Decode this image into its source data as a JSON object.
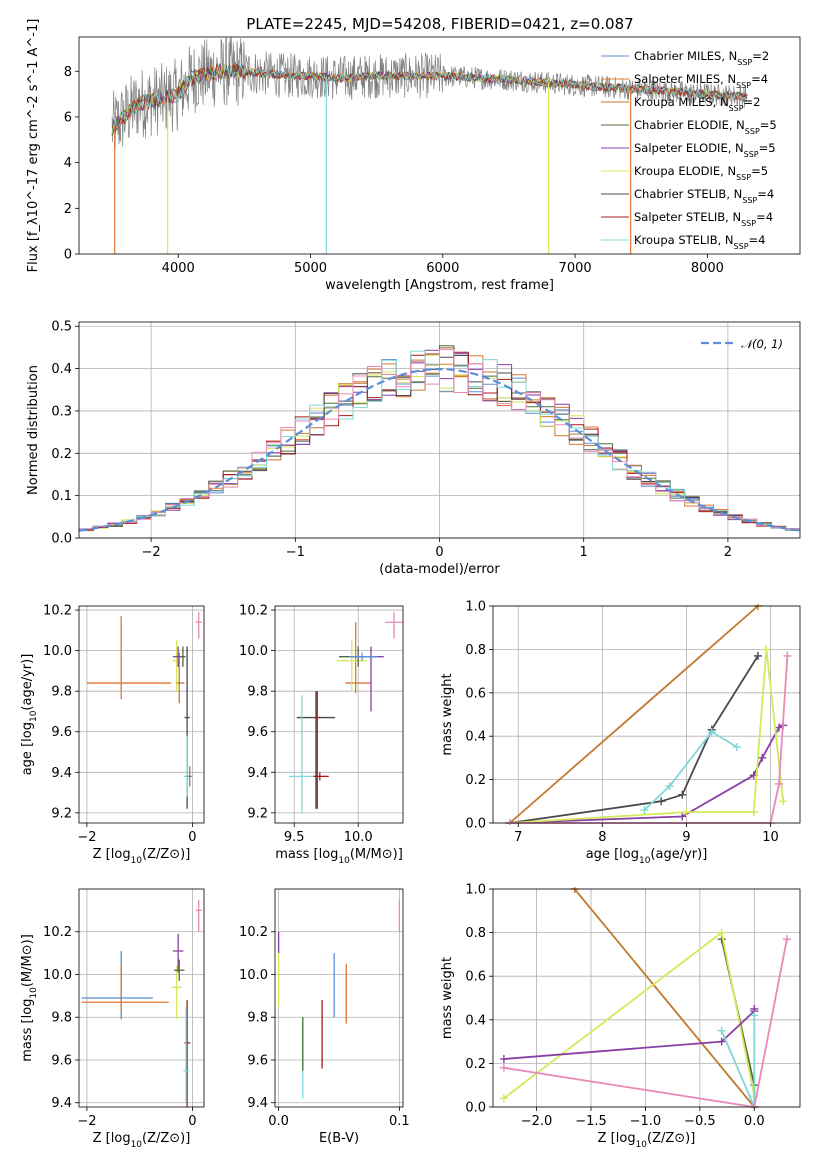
{
  "title": "PLATE=2245, MJD=54208, FIBERID=0421, z=0.087",
  "colors": {
    "chabrier_miles": "#5b8fd9",
    "salpeter_miles": "#e0762f",
    "kroupa_miles": "#c2792e",
    "chabrier_elodie": "#4f6b3a",
    "salpeter_elodie": "#8a3fa6",
    "kroupa_elodie": "#d4e85a",
    "chabrier_stelib": "#4a4a4a",
    "salpeter_stelib": "#a81c1c",
    "kroupa_stelib": "#7fd8d8",
    "data": "#808080",
    "pink": "#e88ab8"
  },
  "chart_data": [
    {
      "type": "line",
      "xlabel": "wavelength [Angstrom, rest frame]",
      "ylabel": "Flux [f_λ10^-17 erg cm^-2 s^-1 A^-1]",
      "xlim": [
        3250,
        8700
      ],
      "ylim": [
        0,
        9.5
      ],
      "xticks": [
        4000,
        5000,
        6000,
        7000,
        8000
      ],
      "yticks": [
        0,
        2,
        4,
        6,
        8
      ],
      "grid": false,
      "legend_position": "right",
      "legend": [
        {
          "label": "Chabrier MILES, N",
          "sub": "SSP",
          "suffix": "=2",
          "color": "#5b8fd9"
        },
        {
          "label": "Salpeter MILES, N",
          "sub": "SSP",
          "suffix": "=4",
          "color": "#e0762f"
        },
        {
          "label": "Kroupa MILES, N",
          "sub": "SSP",
          "suffix": "=2",
          "color": "#c2792e"
        },
        {
          "label": "Chabrier ELODIE, N",
          "sub": "SSP",
          "suffix": "=5",
          "color": "#4f6b3a"
        },
        {
          "label": "Salpeter ELODIE, N",
          "sub": "SSP",
          "suffix": "=5",
          "color": "#8a3fa6"
        },
        {
          "label": "Kroupa ELODIE, N",
          "sub": "SSP",
          "suffix": "=5",
          "color": "#d4e85a"
        },
        {
          "label": "Chabrier STELIB, N",
          "sub": "SSP",
          "suffix": "=4",
          "color": "#4a4a4a"
        },
        {
          "label": "Salpeter STELIB, N",
          "sub": "SSP",
          "suffix": "=4",
          "color": "#a81c1c"
        },
        {
          "label": "Kroupa STELIB, N",
          "sub": "SSP",
          "suffix": "=4",
          "color": "#7fd8d8"
        }
      ],
      "continuum": {
        "x": [
          3500,
          3700,
          3900,
          4000,
          4100,
          4300,
          4500,
          4800,
          5000,
          5200,
          5500,
          5800,
          6000,
          6300,
          6600,
          7000,
          7500,
          8000,
          8300
        ],
        "y": [
          5.5,
          6.6,
          6.8,
          7.0,
          7.7,
          8.0,
          8.0,
          7.8,
          7.8,
          7.7,
          7.8,
          7.8,
          7.8,
          7.7,
          7.6,
          7.4,
          7.2,
          7.0,
          6.9
        ]
      },
      "dips": [
        {
          "x": 3520,
          "y": 0,
          "color": "#e0762f"
        },
        {
          "x": 3920,
          "y": 0,
          "color": "#d4e85a"
        },
        {
          "x": 5120,
          "y": 0,
          "color": "#7fd8d8"
        },
        {
          "x": 6800,
          "y": 0,
          "color": "#d4e85a"
        },
        {
          "x": 7420,
          "y": 0,
          "color": "#e0762f"
        }
      ]
    },
    {
      "type": "histogram",
      "xlabel": "(data-model)/error",
      "ylabel": "Normed distribution",
      "xlim": [
        -2.5,
        2.5
      ],
      "ylim": [
        0,
        0.51
      ],
      "xticks": [
        -2,
        -1,
        0,
        1,
        2
      ],
      "xticklabels": [
        "−2",
        "−1",
        "0",
        "1",
        "2"
      ],
      "yticks": [
        0,
        0.1,
        0.2,
        0.3,
        0.4,
        0.5
      ],
      "yticklabels": [
        "0.0",
        "0.1",
        "0.2",
        "0.3",
        "0.4",
        "0.5"
      ],
      "grid": true,
      "legend_position": "top-right",
      "legend": [
        {
          "label": "𝒩(0, 1)",
          "color": "#5b8fd9",
          "dashed": true
        }
      ],
      "bin_width": 0.1,
      "bin_start": -2.5
    },
    {
      "type": "scatter",
      "xlabel": "Z [log10(Z/Z⊙)]",
      "ylabel": "age  [log10(age/yr)]",
      "xlim": [
        -2.15,
        0.22
      ],
      "ylim": [
        9.15,
        10.22
      ],
      "xticks": [
        -2,
        0
      ],
      "xticklabels": [
        "−2",
        "0"
      ],
      "yticks": [
        9.2,
        9.4,
        9.6,
        9.8,
        10.0,
        10.2
      ],
      "yticklabels": [
        "9.2",
        "9.4",
        "9.6",
        "9.8",
        "10.0",
        "10.2"
      ],
      "grid": true,
      "points": [
        {
          "x": -1.35,
          "xerr": [
            0.65,
            0.95
          ],
          "y": 9.84,
          "yerr": [
            0.08,
            0.33
          ],
          "color": "#e0762f"
        },
        {
          "x": -0.3,
          "xerr": [
            0.08,
            0.05
          ],
          "y": 9.95,
          "yerr": [
            0.15,
            0.1
          ],
          "color": "#d4e85a"
        },
        {
          "x": -0.25,
          "xerr": [
            0.05,
            0.1
          ],
          "y": 9.84,
          "yerr": [
            0.1,
            0.15
          ],
          "color": "#c2792e"
        },
        {
          "x": -0.27,
          "xerr": [
            0.1,
            0.1
          ],
          "y": 9.97,
          "yerr": [
            0.05,
            0.05
          ],
          "color": "#8a3fa6"
        },
        {
          "x": -0.18,
          "xerr": [
            0.05,
            0.05
          ],
          "y": 9.97,
          "yerr": [
            0.05,
            0.05
          ],
          "color": "#4f6b3a"
        },
        {
          "x": -0.1,
          "xerr": [
            0.05,
            0.05
          ],
          "y": 9.67,
          "yerr": [
            0.45,
            0.35
          ],
          "color": "#4a4a4a"
        },
        {
          "x": -0.1,
          "xerr": [
            0.06,
            0.05
          ],
          "y": 9.38,
          "yerr": [
            0.1,
            0.2
          ],
          "color": "#7fd8d8"
        },
        {
          "x": -0.05,
          "xerr": [
            0.04,
            0.04
          ],
          "y": 9.38,
          "yerr": [
            0.05,
            0.05
          ],
          "color": "#808080"
        },
        {
          "x": 0.12,
          "xerr": [
            0.06,
            0.06
          ],
          "y": 10.14,
          "yerr": [
            0.08,
            0.05
          ],
          "color": "#e88ab8"
        }
      ]
    },
    {
      "type": "scatter",
      "xlabel": "mass [log10(M/M⊙)]",
      "ylabel": "",
      "xlim": [
        9.35,
        10.35
      ],
      "ylim": [
        9.15,
        10.22
      ],
      "xticks": [
        9.5,
        10.0
      ],
      "xticklabels": [
        "9.5",
        "10.0"
      ],
      "yticks": [
        9.2,
        9.4,
        9.6,
        9.8,
        10.0,
        10.2
      ],
      "yticklabels": [
        "9.2",
        "9.4",
        "9.6",
        "9.8",
        "10.0",
        "10.2"
      ],
      "grid": true,
      "points": [
        {
          "x": 9.67,
          "xerr": [
            0.15,
            0.15
          ],
          "y": 9.67,
          "yerr": [
            0.45,
            0.13
          ],
          "color": "#4a4a4a"
        },
        {
          "x": 9.68,
          "xerr": [
            0.02,
            0.02
          ],
          "y": 9.67,
          "yerr": [
            0.45,
            0.13
          ],
          "color": "#a81c1c"
        },
        {
          "x": 9.56,
          "xerr": [
            0.1,
            0.1
          ],
          "y": 9.38,
          "yerr": [
            0.18,
            0.4
          ],
          "color": "#7fd8d8"
        },
        {
          "x": 9.7,
          "xerr": [
            0.05,
            0.07
          ],
          "y": 9.38,
          "yerr": [
            0.02,
            0.02
          ],
          "color": "#a81c1c"
        },
        {
          "x": 9.98,
          "xerr": [
            0.08,
            0.12
          ],
          "y": 9.84,
          "yerr": [
            0.05,
            0.3
          ],
          "color": "#e0762f"
        },
        {
          "x": 9.95,
          "xerr": [
            0.12,
            0.12
          ],
          "y": 9.95,
          "yerr": [
            0.15,
            0.1
          ],
          "color": "#d4e85a"
        },
        {
          "x": 10.0,
          "xerr": [
            0.15,
            0.15
          ],
          "y": 9.97,
          "yerr": [
            0.05,
            0.05
          ],
          "color": "#4f6b3a"
        },
        {
          "x": 10.1,
          "xerr": [
            0.15,
            0.1
          ],
          "y": 9.97,
          "yerr": [
            0.27,
            0.05
          ],
          "color": "#8a3fa6"
        },
        {
          "x": 10.03,
          "xerr": [
            0.1,
            0.12
          ],
          "y": 9.97,
          "yerr": [
            0.02,
            0.02
          ],
          "color": "#5b8fd9"
        },
        {
          "x": 10.28,
          "xerr": [
            0.07,
            0.07
          ],
          "y": 10.14,
          "yerr": [
            0.08,
            0.05
          ],
          "color": "#e88ab8"
        }
      ]
    },
    {
      "type": "line",
      "xlabel": "age  [log10(age/yr)]",
      "ylabel": "mass weight",
      "xlim": [
        6.7,
        10.35
      ],
      "ylim": [
        0,
        1.0
      ],
      "xticks": [
        7,
        8,
        9,
        10
      ],
      "xticklabels": [
        "7",
        "8",
        "9",
        "10"
      ],
      "yticks": [
        0,
        0.2,
        0.4,
        0.6,
        0.8,
        1.0
      ],
      "yticklabels": [
        "0.0",
        "0.2",
        "0.4",
        "0.6",
        "0.8",
        "1.0"
      ],
      "grid": true,
      "series": [
        {
          "color": "#c2792e",
          "x": [
            6.9,
            9.85
          ],
          "y": [
            0.0,
            1.0
          ]
        },
        {
          "color": "#4a4a4a",
          "x": [
            6.9,
            8.7,
            8.95,
            9.3,
            9.85
          ],
          "y": [
            0.0,
            0.1,
            0.13,
            0.43,
            0.77
          ]
        },
        {
          "color": "#7fd8d8",
          "x": [
            8.5,
            8.8,
            9.3,
            9.6
          ],
          "y": [
            0.06,
            0.17,
            0.42,
            0.35
          ]
        },
        {
          "color": "#8a3fa6",
          "x": [
            6.9,
            8.95,
            9.8,
            9.9,
            10.1,
            10.15
          ],
          "y": [
            0.0,
            0.03,
            0.22,
            0.3,
            0.44,
            0.45
          ]
        },
        {
          "color": "#d4e85a",
          "x": [
            6.9,
            9.0,
            9.8,
            9.95,
            10.15
          ],
          "y": [
            0.0,
            0.05,
            0.05,
            0.8,
            0.1
          ]
        },
        {
          "color": "#e88ab8",
          "x": [
            6.9,
            10.0,
            10.1,
            10.2
          ],
          "y": [
            0.0,
            0.0,
            0.18,
            0.77
          ]
        }
      ]
    },
    {
      "type": "scatter",
      "xlabel": "Z [log10(Z/Z⊙)]",
      "ylabel": "mass [log10(M/M⊙)]",
      "xlim": [
        -2.15,
        0.22
      ],
      "ylim": [
        9.38,
        10.4
      ],
      "xticks": [
        -2,
        0
      ],
      "xticklabels": [
        "−2",
        "0"
      ],
      "yticks": [
        9.4,
        9.6,
        9.8,
        10.0,
        10.2
      ],
      "yticklabels": [
        "9.4",
        "9.6",
        "9.8",
        "10.0",
        "10.2"
      ],
      "grid": true,
      "points": [
        {
          "x": -1.35,
          "xerr": [
            0.75,
            0.6
          ],
          "y": 9.89,
          "yerr": [
            0.1,
            0.22
          ],
          "color": "#5b8fd9"
        },
        {
          "x": -1.35,
          "xerr": [
            0.75,
            0.9
          ],
          "y": 9.87,
          "yerr": [
            0.05,
            0.17
          ],
          "color": "#e0762f"
        },
        {
          "x": -0.3,
          "xerr": [
            0.1,
            0.1
          ],
          "y": 9.94,
          "yerr": [
            0.15,
            0.1
          ],
          "color": "#d4e85a"
        },
        {
          "x": -0.27,
          "xerr": [
            0.1,
            0.1
          ],
          "y": 10.11,
          "yerr": [
            0.1,
            0.08
          ],
          "color": "#8a3fa6"
        },
        {
          "x": -0.25,
          "xerr": [
            0.1,
            0.1
          ],
          "y": 10.02,
          "yerr": [
            0.05,
            0.05
          ],
          "color": "#4f6b3a"
        },
        {
          "x": -0.1,
          "xerr": [
            0.05,
            0.06
          ],
          "y": 9.68,
          "yerr": [
            0.3,
            0.2
          ],
          "color": "#a81c1c"
        },
        {
          "x": -0.12,
          "xerr": [
            0.05,
            0.06
          ],
          "y": 9.55,
          "yerr": [
            0.15,
            0.3
          ],
          "color": "#7fd8d8"
        },
        {
          "x": 0.12,
          "xerr": [
            0.06,
            0.06
          ],
          "y": 10.3,
          "yerr": [
            0.1,
            0.05
          ],
          "color": "#e88ab8"
        }
      ]
    },
    {
      "type": "scatter",
      "xlabel": "E(B-V)",
      "ylabel": "",
      "xlim": [
        -0.003,
        0.103
      ],
      "ylim": [
        9.38,
        10.4
      ],
      "xticks": [
        0.0,
        0.1
      ],
      "xticklabels": [
        "0.0",
        "0.1"
      ],
      "yticks": [
        9.4,
        9.6,
        9.8,
        10.0,
        10.2
      ],
      "yticklabels": [
        "9.4",
        "9.6",
        "9.8",
        "10.0",
        "10.2"
      ],
      "grid": true,
      "points": [
        {
          "x": 0.0,
          "y": 10.05,
          "yerr": [
            0.2,
            0.15
          ],
          "color": "#d4e85a"
        },
        {
          "x": 0.0,
          "y": 10.15,
          "yerr": [
            0.05,
            0.05
          ],
          "color": "#8a3fa6"
        },
        {
          "x": 0.02,
          "y": 9.6,
          "yerr": [
            0.18,
            0.2
          ],
          "color": "#7fd8d8"
        },
        {
          "x": 0.02,
          "y": 9.65,
          "yerr": [
            0.1,
            0.15
          ],
          "color": "#4f6b3a"
        },
        {
          "x": 0.036,
          "y": 9.72,
          "yerr": [
            0.16,
            0.16
          ],
          "color": "#a81c1c"
        },
        {
          "x": 0.046,
          "y": 9.95,
          "yerr": [
            0.15,
            0.15
          ],
          "color": "#5b8fd9"
        },
        {
          "x": 0.056,
          "y": 9.91,
          "yerr": [
            0.14,
            0.14
          ],
          "color": "#e0762f"
        },
        {
          "x": 0.1,
          "y": 10.3,
          "yerr": [
            0.1,
            0.05
          ],
          "color": "#e88ab8"
        }
      ]
    },
    {
      "type": "line",
      "xlabel": "Z [log10(Z/Z⊙)]",
      "ylabel": "mass weight",
      "xlim": [
        -2.4,
        0.42
      ],
      "ylim": [
        0,
        1.0
      ],
      "xticks": [
        -2.0,
        -1.5,
        -1.0,
        -0.5,
        0.0
      ],
      "xticklabels": [
        "−2.0",
        "−1.5",
        "−1.0",
        "−0.5",
        "0.0"
      ],
      "yticks": [
        0,
        0.2,
        0.4,
        0.6,
        0.8,
        1.0
      ],
      "yticklabels": [
        "0.0",
        "0.2",
        "0.4",
        "0.6",
        "0.8",
        "1.0"
      ],
      "grid": true,
      "series": [
        {
          "color": "#c2792e",
          "x": [
            -1.65,
            0.0
          ],
          "y": [
            1.0,
            0.0
          ]
        },
        {
          "color": "#4f6b3a",
          "x": [
            -0.3,
            0.0,
            0.0
          ],
          "y": [
            0.77,
            0.1,
            0.0
          ]
        },
        {
          "color": "#d4e85a",
          "x": [
            -2.3,
            -0.3,
            0.0
          ],
          "y": [
            0.04,
            0.8,
            0.05
          ]
        },
        {
          "color": "#8a3fa6",
          "x": [
            -2.3,
            -0.3,
            0.0,
            0.0
          ],
          "y": [
            0.22,
            0.3,
            0.44,
            0.45
          ]
        },
        {
          "color": "#7fd8d8",
          "x": [
            -0.3,
            0.0,
            0.0
          ],
          "y": [
            0.35,
            0.0,
            0.42
          ]
        },
        {
          "color": "#e88ab8",
          "x": [
            -2.3,
            0.0,
            0.3
          ],
          "y": [
            0.18,
            0.0,
            0.77
          ]
        }
      ]
    }
  ]
}
